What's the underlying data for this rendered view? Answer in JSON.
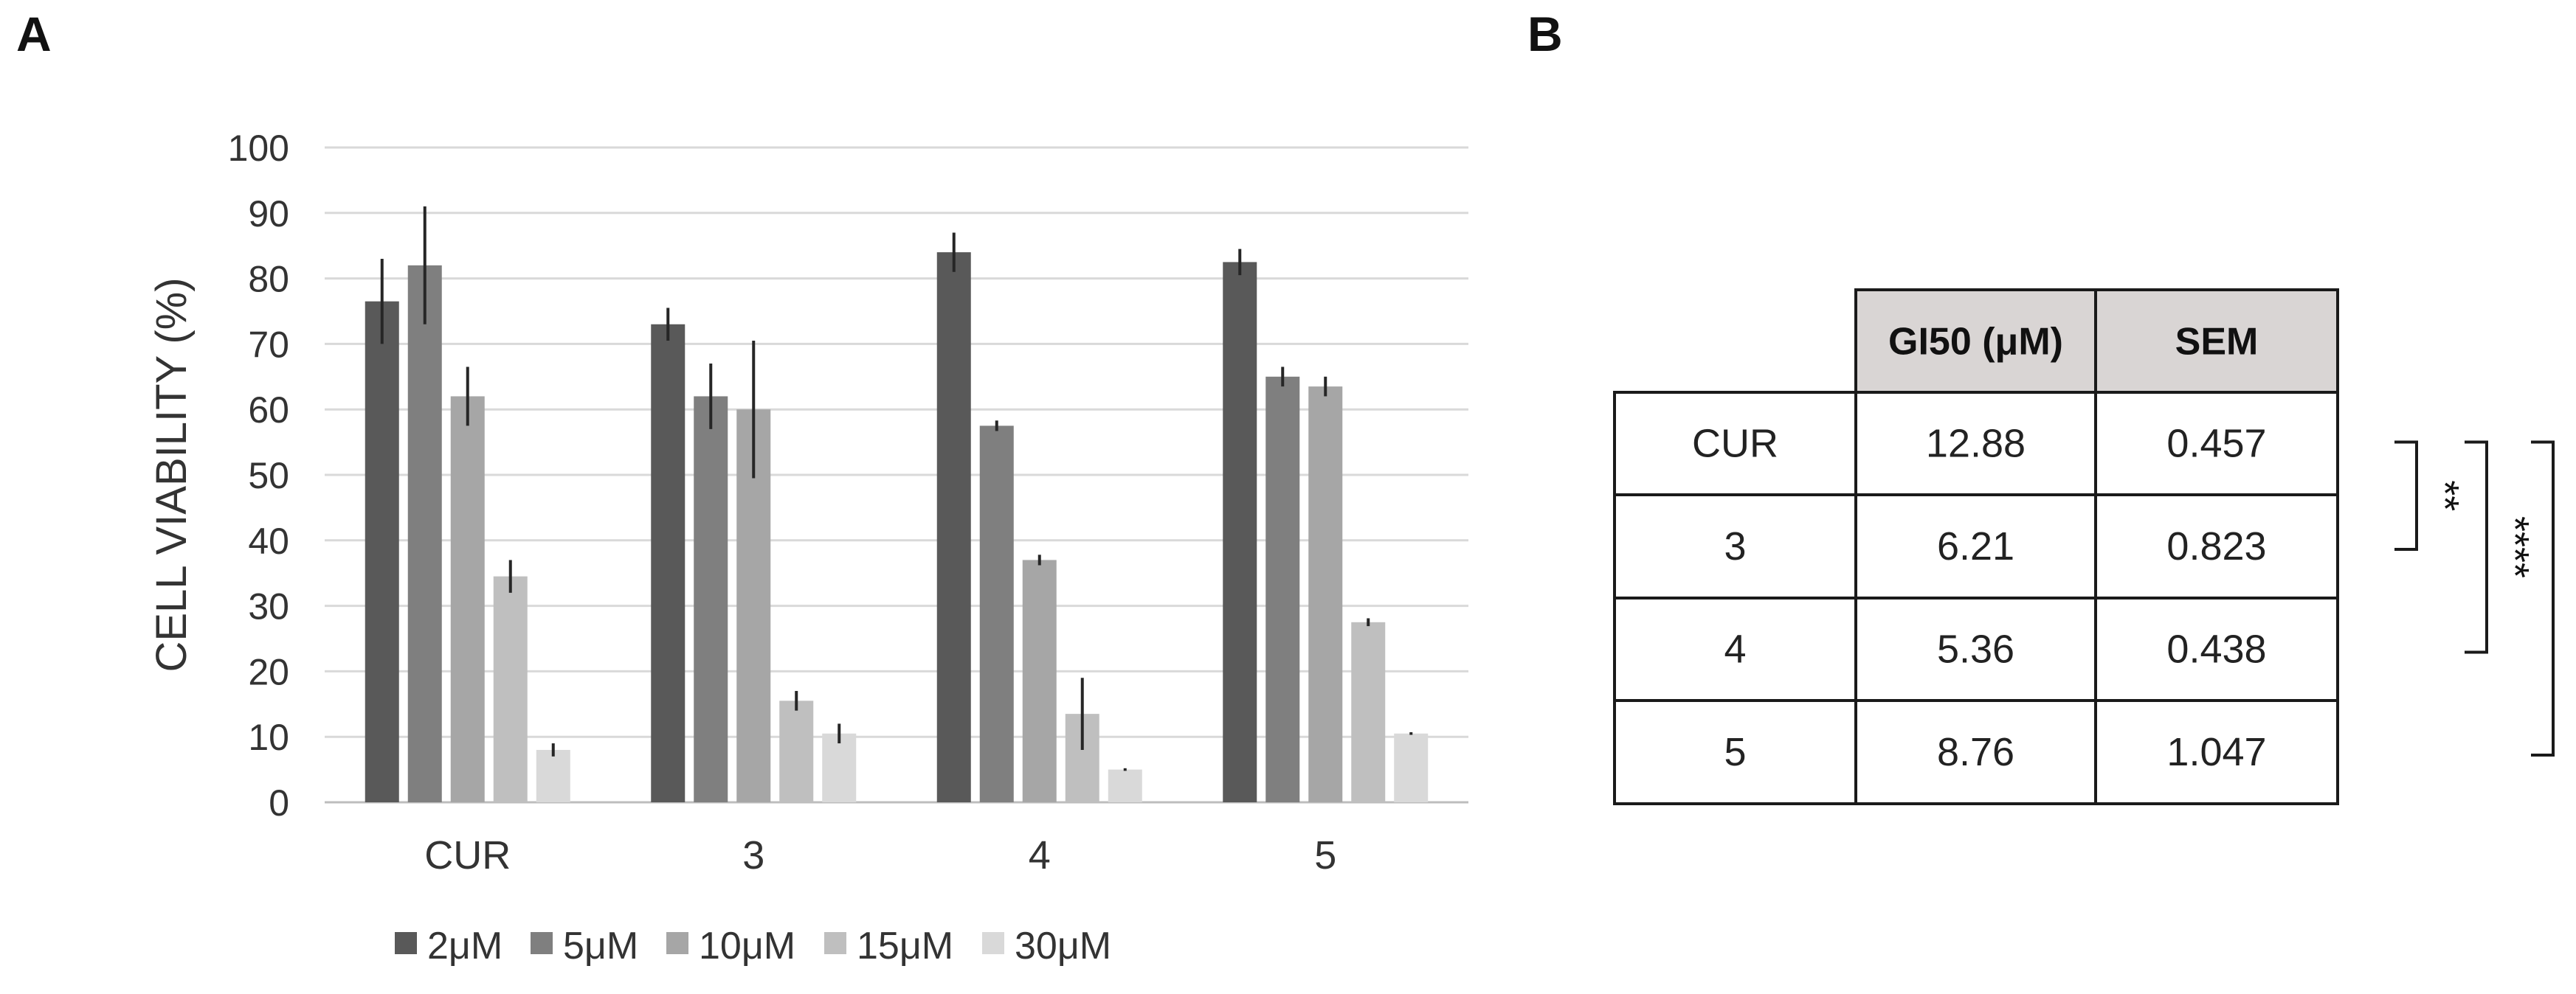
{
  "panels": {
    "a_label": "A",
    "b_label": "B"
  },
  "chart_data": {
    "type": "bar",
    "ylabel": "CELL VIABILITY (%)",
    "xlabel": "",
    "ylim": [
      0,
      100
    ],
    "yticks": [
      0,
      10,
      20,
      30,
      40,
      50,
      60,
      70,
      80,
      90,
      100
    ],
    "grid": true,
    "legend_position": "bottom",
    "categories": [
      "CUR",
      "3",
      "4",
      "5"
    ],
    "series": [
      {
        "name": "2μM",
        "color": "#595959",
        "values": [
          76.5,
          73.0,
          84.0,
          82.5
        ],
        "errors": [
          6.5,
          2.5,
          3.0,
          2.0
        ]
      },
      {
        "name": "5μM",
        "color": "#7f7f7f",
        "values": [
          82.0,
          62.0,
          57.5,
          65.0
        ],
        "errors": [
          9.0,
          5.0,
          0.8,
          1.5
        ]
      },
      {
        "name": "10μM",
        "color": "#a6a6a6",
        "values": [
          62.0,
          60.0,
          37.0,
          63.5
        ],
        "errors": [
          4.5,
          10.5,
          0.8,
          1.5
        ]
      },
      {
        "name": "15μM",
        "color": "#bfbfbf",
        "values": [
          34.5,
          15.5,
          13.5,
          27.5
        ],
        "errors": [
          2.5,
          1.5,
          5.5,
          0.6
        ]
      },
      {
        "name": "30μM",
        "color": "#d9d9d9",
        "values": [
          8.0,
          10.5,
          5.0,
          10.5
        ],
        "errors": [
          1.0,
          1.5,
          0.2,
          0.2
        ]
      }
    ]
  },
  "table": {
    "headers": [
      "",
      "GI50 (μM)",
      "SEM"
    ],
    "header_bg": "#d9d5d4",
    "rows": [
      [
        "CUR",
        "12.88",
        "0.457"
      ],
      [
        "3",
        "6.21",
        "0.823"
      ],
      [
        "4",
        "5.36",
        "0.438"
      ],
      [
        "5",
        "8.76",
        "1.047"
      ]
    ],
    "significance": [
      {
        "from_row": 0,
        "to_row": 1,
        "label": "**"
      },
      {
        "from_row": 0,
        "to_row": 2,
        "label": "****"
      },
      {
        "from_row": 0,
        "to_row": 3,
        "label": "**"
      }
    ]
  }
}
